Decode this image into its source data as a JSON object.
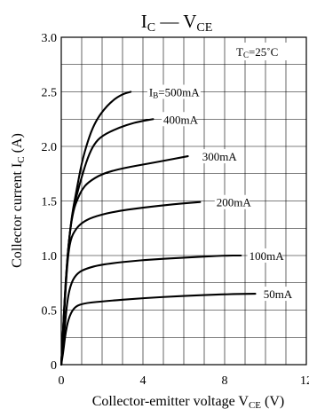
{
  "chart_data": {
    "type": "line",
    "title": {
      "main": "I",
      "sub1": "C",
      "sep": " — V",
      "sub2": "CE"
    },
    "xlabel": {
      "main": "Collector-emitter voltage  V",
      "sub": "CE",
      "unit": "  (V)"
    },
    "ylabel": {
      "main": "Collector current  I",
      "sub": "C",
      "unit": "  (A)"
    },
    "condition": {
      "main": "T",
      "sub": "C",
      "rest": "=25˚C"
    },
    "xlim": [
      0,
      12
    ],
    "ylim": [
      0,
      3.0
    ],
    "x_ticks": [
      0,
      4,
      8,
      12
    ],
    "x_tick_labels": [
      "0",
      "4",
      "8",
      "12"
    ],
    "y_ticks": [
      0,
      0.5,
      1.0,
      1.5,
      2.0,
      2.5,
      3.0
    ],
    "y_tick_labels": [
      "0",
      "0.5",
      "1.0",
      "1.5",
      "2.0",
      "2.5",
      "3.0"
    ],
    "grid": true,
    "series": [
      {
        "label": "50mA",
        "label_x": 9.9,
        "label_y": 0.65,
        "points": [
          [
            0,
            0
          ],
          [
            0.1,
            0.12
          ],
          [
            0.2,
            0.28
          ],
          [
            0.35,
            0.42
          ],
          [
            0.6,
            0.52
          ],
          [
            1,
            0.56
          ],
          [
            2,
            0.58
          ],
          [
            4,
            0.61
          ],
          [
            6,
            0.63
          ],
          [
            8,
            0.645
          ],
          [
            9.5,
            0.65
          ]
        ]
      },
      {
        "label": "100mA",
        "label_x": 9.2,
        "label_y": 1.0,
        "points": [
          [
            0,
            0
          ],
          [
            0.15,
            0.3
          ],
          [
            0.3,
            0.6
          ],
          [
            0.5,
            0.76
          ],
          [
            0.8,
            0.84
          ],
          [
            1.2,
            0.88
          ],
          [
            2,
            0.92
          ],
          [
            4,
            0.96
          ],
          [
            6,
            0.98
          ],
          [
            8,
            1.0
          ],
          [
            8.8,
            1.0
          ]
        ]
      },
      {
        "label": "200mA",
        "label_x": 7.6,
        "label_y": 1.49,
        "points": [
          [
            0,
            0
          ],
          [
            0.15,
            0.5
          ],
          [
            0.3,
            0.95
          ],
          [
            0.45,
            1.15
          ],
          [
            0.7,
            1.24
          ],
          [
            1,
            1.3
          ],
          [
            1.5,
            1.35
          ],
          [
            2.5,
            1.4
          ],
          [
            4,
            1.44
          ],
          [
            5.5,
            1.47
          ],
          [
            6.8,
            1.49
          ]
        ]
      },
      {
        "label": "300mA",
        "label_x": 6.9,
        "label_y": 1.91,
        "points": [
          [
            0,
            0
          ],
          [
            0.2,
            0.7
          ],
          [
            0.4,
            1.2
          ],
          [
            0.6,
            1.42
          ],
          [
            0.8,
            1.52
          ],
          [
            1,
            1.6
          ],
          [
            1.3,
            1.67
          ],
          [
            2,
            1.75
          ],
          [
            3,
            1.8
          ],
          [
            4.5,
            1.85
          ],
          [
            6.2,
            1.91
          ]
        ]
      },
      {
        "label": "400mA",
        "label_x": 5.0,
        "label_y": 2.25,
        "points": [
          [
            0,
            0
          ],
          [
            0.25,
            0.9
          ],
          [
            0.5,
            1.35
          ],
          [
            0.75,
            1.55
          ],
          [
            1,
            1.72
          ],
          [
            1.3,
            1.9
          ],
          [
            1.6,
            2.02
          ],
          [
            2,
            2.1
          ],
          [
            2.8,
            2.17
          ],
          [
            3.6,
            2.22
          ],
          [
            4.5,
            2.25
          ]
        ]
      },
      {
        "label": "B=500mA",
        "label_prefix": "I",
        "label_x": 4.3,
        "label_y": 2.5,
        "points": [
          [
            0,
            0
          ],
          [
            0.25,
            0.9
          ],
          [
            0.5,
            1.35
          ],
          [
            0.75,
            1.6
          ],
          [
            1,
            1.85
          ],
          [
            1.3,
            2.05
          ],
          [
            1.6,
            2.2
          ],
          [
            2,
            2.32
          ],
          [
            2.5,
            2.42
          ],
          [
            3,
            2.48
          ],
          [
            3.4,
            2.5
          ]
        ]
      }
    ]
  }
}
